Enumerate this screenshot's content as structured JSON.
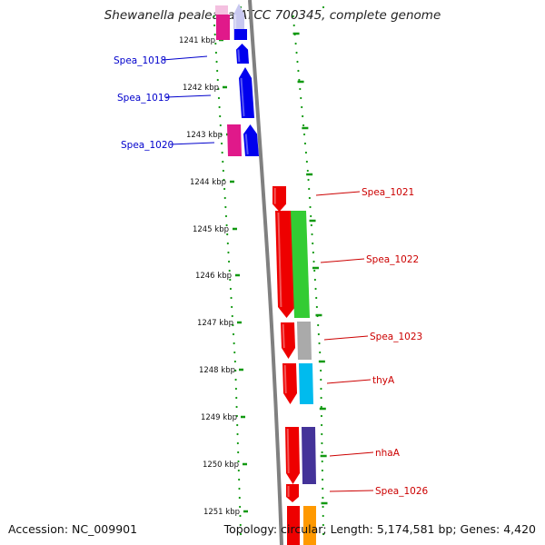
{
  "title": "Shewanella pealeana ATCC 700345, complete genome",
  "accession": "Accession: NC_009901",
  "topology": "Topology: circular; Length: 5,174,581 bp; Genes: 4,420",
  "ticks": [
    "1241 kbp",
    "1242 kbp",
    "1243 kbp",
    "1244 kbp",
    "1245 kbp",
    "1246 kbp",
    "1247 kbp",
    "1248 kbp",
    "1249 kbp",
    "1250 kbp",
    "1251 kbp"
  ],
  "labels_left": [
    "Spea_1018",
    "Spea_1019",
    "Spea_1020"
  ],
  "labels_right": [
    "Spea_1021",
    "Spea_1022",
    "Spea_1023",
    "thyA",
    "nhaA",
    "Spea_1026"
  ],
  "colors": {
    "left_label": "#0000cc",
    "right_label": "#cc0000",
    "dots": "#119911",
    "backbone": "#808080"
  }
}
